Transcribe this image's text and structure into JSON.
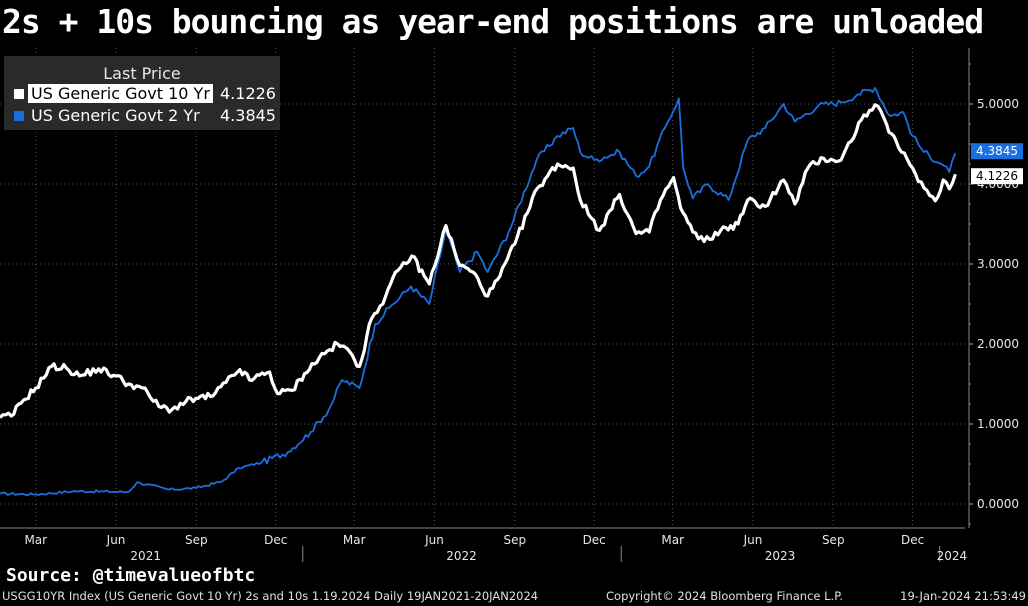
{
  "header": {
    "title": "2s + 10s bouncing as year-end positions are unloaded"
  },
  "legend": {
    "heading": "Last Price",
    "items": [
      {
        "name": "US Generic Govt 10 Yr",
        "value": "4.1226",
        "color": "#ffffff"
      },
      {
        "name": "US Generic Govt 2 Yr",
        "value": "4.3845",
        "color": "#1a6fe0"
      }
    ]
  },
  "chart_data": {
    "type": "line",
    "ylim": [
      -0.3,
      5.7
    ],
    "yticks": [
      "0.0000",
      "1.0000",
      "2.0000",
      "3.0000",
      "4.0000",
      "5.0000"
    ],
    "month_ticks": [
      "Mar",
      "Jun",
      "Sep",
      "Dec",
      "Mar",
      "Jun",
      "Sep",
      "Dec",
      "Mar",
      "Jun",
      "Sep",
      "Dec"
    ],
    "year_labels": [
      "2021",
      "2022",
      "2023",
      "2024"
    ],
    "series": [
      {
        "name": "US Generic Govt 10 Yr",
        "color": "#ffffff",
        "last_label": "4.1226",
        "points": [
          [
            "2021-01-19",
            1.08
          ],
          [
            "2021-02-01",
            1.1
          ],
          [
            "2021-02-15",
            1.3
          ],
          [
            "2021-03-01",
            1.45
          ],
          [
            "2021-03-19",
            1.72
          ],
          [
            "2021-04-05",
            1.7
          ],
          [
            "2021-04-20",
            1.6
          ],
          [
            "2021-05-12",
            1.69
          ],
          [
            "2021-06-01",
            1.6
          ],
          [
            "2021-06-15",
            1.5
          ],
          [
            "2021-07-01",
            1.45
          ],
          [
            "2021-07-20",
            1.22
          ],
          [
            "2021-08-04",
            1.18
          ],
          [
            "2021-08-20",
            1.28
          ],
          [
            "2021-09-03",
            1.32
          ],
          [
            "2021-09-20",
            1.35
          ],
          [
            "2021-10-05",
            1.52
          ],
          [
            "2021-10-21",
            1.68
          ],
          [
            "2021-11-01",
            1.55
          ],
          [
            "2021-11-24",
            1.65
          ],
          [
            "2021-12-03",
            1.38
          ],
          [
            "2021-12-20",
            1.42
          ],
          [
            "2022-01-03",
            1.63
          ],
          [
            "2022-01-20",
            1.83
          ],
          [
            "2022-02-10",
            2.0
          ],
          [
            "2022-02-24",
            1.9
          ],
          [
            "2022-03-07",
            1.72
          ],
          [
            "2022-03-21",
            2.32
          ],
          [
            "2022-04-06",
            2.6
          ],
          [
            "2022-04-20",
            2.92
          ],
          [
            "2022-05-06",
            3.1
          ],
          [
            "2022-05-26",
            2.75
          ],
          [
            "2022-06-14",
            3.48
          ],
          [
            "2022-06-30",
            2.98
          ],
          [
            "2022-07-15",
            2.9
          ],
          [
            "2022-08-01",
            2.6
          ],
          [
            "2022-08-15",
            2.85
          ],
          [
            "2022-09-01",
            3.25
          ],
          [
            "2022-09-27",
            3.95
          ],
          [
            "2022-10-20",
            4.25
          ],
          [
            "2022-11-07",
            4.2
          ],
          [
            "2022-11-15",
            3.8
          ],
          [
            "2022-12-07",
            3.42
          ],
          [
            "2022-12-30",
            3.87
          ],
          [
            "2023-01-18",
            3.38
          ],
          [
            "2023-02-02",
            3.4
          ],
          [
            "2023-02-15",
            3.8
          ],
          [
            "2023-03-02",
            4.08
          ],
          [
            "2023-03-10",
            3.7
          ],
          [
            "2023-03-24",
            3.4
          ],
          [
            "2023-04-06",
            3.28
          ],
          [
            "2023-04-25",
            3.42
          ],
          [
            "2023-05-15",
            3.5
          ],
          [
            "2023-05-26",
            3.8
          ],
          [
            "2023-06-15",
            3.72
          ],
          [
            "2023-07-06",
            4.05
          ],
          [
            "2023-07-19",
            3.75
          ],
          [
            "2023-08-03",
            4.2
          ],
          [
            "2023-08-21",
            4.32
          ],
          [
            "2023-09-10",
            4.3
          ],
          [
            "2023-10-03",
            4.8
          ],
          [
            "2023-10-19",
            4.99
          ],
          [
            "2023-11-01",
            4.75
          ],
          [
            "2023-11-15",
            4.45
          ],
          [
            "2023-12-01",
            4.2
          ],
          [
            "2023-12-14",
            3.95
          ],
          [
            "2023-12-27",
            3.79
          ],
          [
            "2024-01-05",
            4.05
          ],
          [
            "2024-01-12",
            3.94
          ],
          [
            "2024-01-19",
            4.1226
          ]
        ]
      },
      {
        "name": "US Generic Govt 2 Yr",
        "color": "#1a6fe0",
        "last_label": "4.3845",
        "points": [
          [
            "2021-01-19",
            0.13
          ],
          [
            "2021-03-01",
            0.12
          ],
          [
            "2021-04-15",
            0.16
          ],
          [
            "2021-06-15",
            0.15
          ],
          [
            "2021-06-25",
            0.27
          ],
          [
            "2021-08-01",
            0.18
          ],
          [
            "2021-09-01",
            0.2
          ],
          [
            "2021-09-30",
            0.28
          ],
          [
            "2021-10-20",
            0.45
          ],
          [
            "2021-11-15",
            0.52
          ],
          [
            "2021-12-15",
            0.65
          ],
          [
            "2022-01-10",
            0.9
          ],
          [
            "2022-01-31",
            1.18
          ],
          [
            "2022-02-15",
            1.55
          ],
          [
            "2022-03-07",
            1.45
          ],
          [
            "2022-03-25",
            2.25
          ],
          [
            "2022-04-10",
            2.45
          ],
          [
            "2022-05-05",
            2.72
          ],
          [
            "2022-05-26",
            2.5
          ],
          [
            "2022-06-14",
            3.43
          ],
          [
            "2022-06-30",
            2.9
          ],
          [
            "2022-07-20",
            3.15
          ],
          [
            "2022-08-01",
            2.9
          ],
          [
            "2022-08-25",
            3.4
          ],
          [
            "2022-09-26",
            4.3
          ],
          [
            "2022-10-20",
            4.6
          ],
          [
            "2022-11-07",
            4.7
          ],
          [
            "2022-11-15",
            4.4
          ],
          [
            "2022-12-01",
            4.3
          ],
          [
            "2022-12-30",
            4.4
          ],
          [
            "2023-01-18",
            4.1
          ],
          [
            "2023-02-02",
            4.22
          ],
          [
            "2023-02-20",
            4.7
          ],
          [
            "2023-03-08",
            5.07
          ],
          [
            "2023-03-13",
            4.2
          ],
          [
            "2023-03-24",
            3.82
          ],
          [
            "2023-04-10",
            4.0
          ],
          [
            "2023-05-04",
            3.8
          ],
          [
            "2023-05-26",
            4.55
          ],
          [
            "2023-06-15",
            4.7
          ],
          [
            "2023-07-06",
            5.0
          ],
          [
            "2023-07-19",
            4.78
          ],
          [
            "2023-08-15",
            4.98
          ],
          [
            "2023-09-10",
            5.02
          ],
          [
            "2023-09-29",
            5.12
          ],
          [
            "2023-10-19",
            5.2
          ],
          [
            "2023-11-05",
            4.85
          ],
          [
            "2023-11-20",
            4.9
          ],
          [
            "2023-12-01",
            4.6
          ],
          [
            "2023-12-14",
            4.4
          ],
          [
            "2024-01-03",
            4.25
          ],
          [
            "2024-01-12",
            4.15
          ],
          [
            "2024-01-19",
            4.3845
          ]
        ]
      }
    ]
  },
  "source": "Source: @timevalueofbtc",
  "footer": {
    "left": "USGG10YR Index (US Generic Govt 10 Yr) 2s and 10s 1.19.2024  Daily 19JAN2021-20JAN2024",
    "center": "Copyright© 2024 Bloomberg Finance L.P.",
    "right": "19-Jan-2024 21:53:49"
  }
}
